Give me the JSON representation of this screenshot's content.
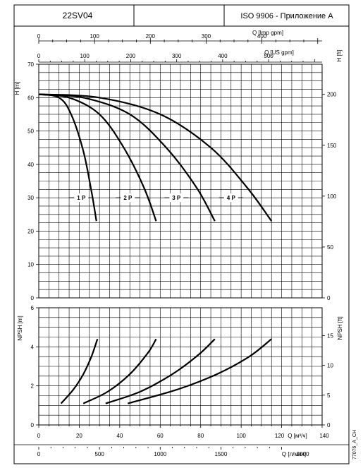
{
  "header": {
    "model": "22SV04",
    "blank": "",
    "standard": "ISO 9906 - Приложение A"
  },
  "side_code": "77076_A_CH",
  "chart_data": [
    {
      "type": "line",
      "panel": "head",
      "ylabel": "H [m]",
      "ylabel_right": "H [ft]",
      "xlabel_top_1": "Q [Imp gpm]",
      "xlabel_top_2": "Q [US gpm]",
      "ylim": [
        0,
        70
      ],
      "ylim_right": [
        0,
        229.66
      ],
      "y_ticks": [
        0,
        10,
        20,
        30,
        40,
        50,
        60,
        70
      ],
      "y_ticks_right": [
        0,
        50,
        100,
        150,
        200
      ],
      "x_ticks_imp": [
        0,
        100,
        200,
        300,
        400
      ],
      "xlim_imp": [
        0,
        507.9
      ],
      "x_ticks_us": [
        0,
        100,
        200,
        300,
        400,
        500
      ],
      "xlim_us": [
        0,
        616.4
      ],
      "xlim": [
        0,
        140
      ],
      "grid": true,
      "series": [
        {
          "name": "1 P",
          "label_at": [
            21,
            30
          ],
          "x": [
            0,
            10,
            16,
            22,
            26,
            28.5
          ],
          "y": [
            61,
            60,
            55,
            44,
            32,
            23
          ]
        },
        {
          "name": "2 P",
          "label_at": [
            44,
            30
          ],
          "x": [
            0,
            15,
            30,
            42,
            52,
            58
          ],
          "y": [
            61,
            60,
            55,
            45,
            33,
            23
          ]
        },
        {
          "name": "3 P",
          "label_at": [
            68,
            30
          ],
          "x": [
            0,
            22,
            45,
            63,
            78,
            87
          ],
          "y": [
            61,
            60,
            55,
            45,
            33,
            23
          ]
        },
        {
          "name": "4 P",
          "label_at": [
            95,
            30
          ],
          "x": [
            0,
            30,
            60,
            85,
            103,
            115
          ],
          "y": [
            61,
            60,
            55,
            45,
            33,
            23
          ]
        }
      ]
    },
    {
      "type": "line",
      "panel": "npsh",
      "ylabel": "NPSH [m]",
      "ylabel_right": "NPSH [ft]",
      "xlabel": "Q [м³/ч]",
      "xlabel_2": "Q [л/мин]",
      "xlim": [
        0,
        140
      ],
      "ylim": [
        0,
        6
      ],
      "ylim_right": [
        0,
        19.685
      ],
      "x_ticks": [
        0,
        20,
        40,
        60,
        80,
        100,
        120,
        140
      ],
      "x_ticks_2": [
        0,
        500,
        1000,
        1500,
        2000
      ],
      "xlim_2": [
        0,
        2333.3
      ],
      "y_ticks": [
        0,
        2,
        4,
        6
      ],
      "y_ticks_right": [
        0,
        5,
        10,
        15
      ],
      "grid": true,
      "series": [
        {
          "name": "1 P",
          "x": [
            11,
            17,
            22,
            26,
            29
          ],
          "y": [
            1.1,
            1.8,
            2.6,
            3.5,
            4.4
          ]
        },
        {
          "name": "2 P",
          "x": [
            22,
            34,
            45,
            54,
            58
          ],
          "y": [
            1.1,
            1.7,
            2.6,
            3.7,
            4.4
          ]
        },
        {
          "name": "3 P",
          "x": [
            33,
            50,
            66,
            79,
            87
          ],
          "y": [
            1.1,
            1.7,
            2.6,
            3.6,
            4.4
          ]
        },
        {
          "name": "4 P",
          "x": [
            44,
            68,
            88,
            104,
            115
          ],
          "y": [
            1.1,
            1.8,
            2.6,
            3.5,
            4.4
          ]
        }
      ]
    }
  ]
}
